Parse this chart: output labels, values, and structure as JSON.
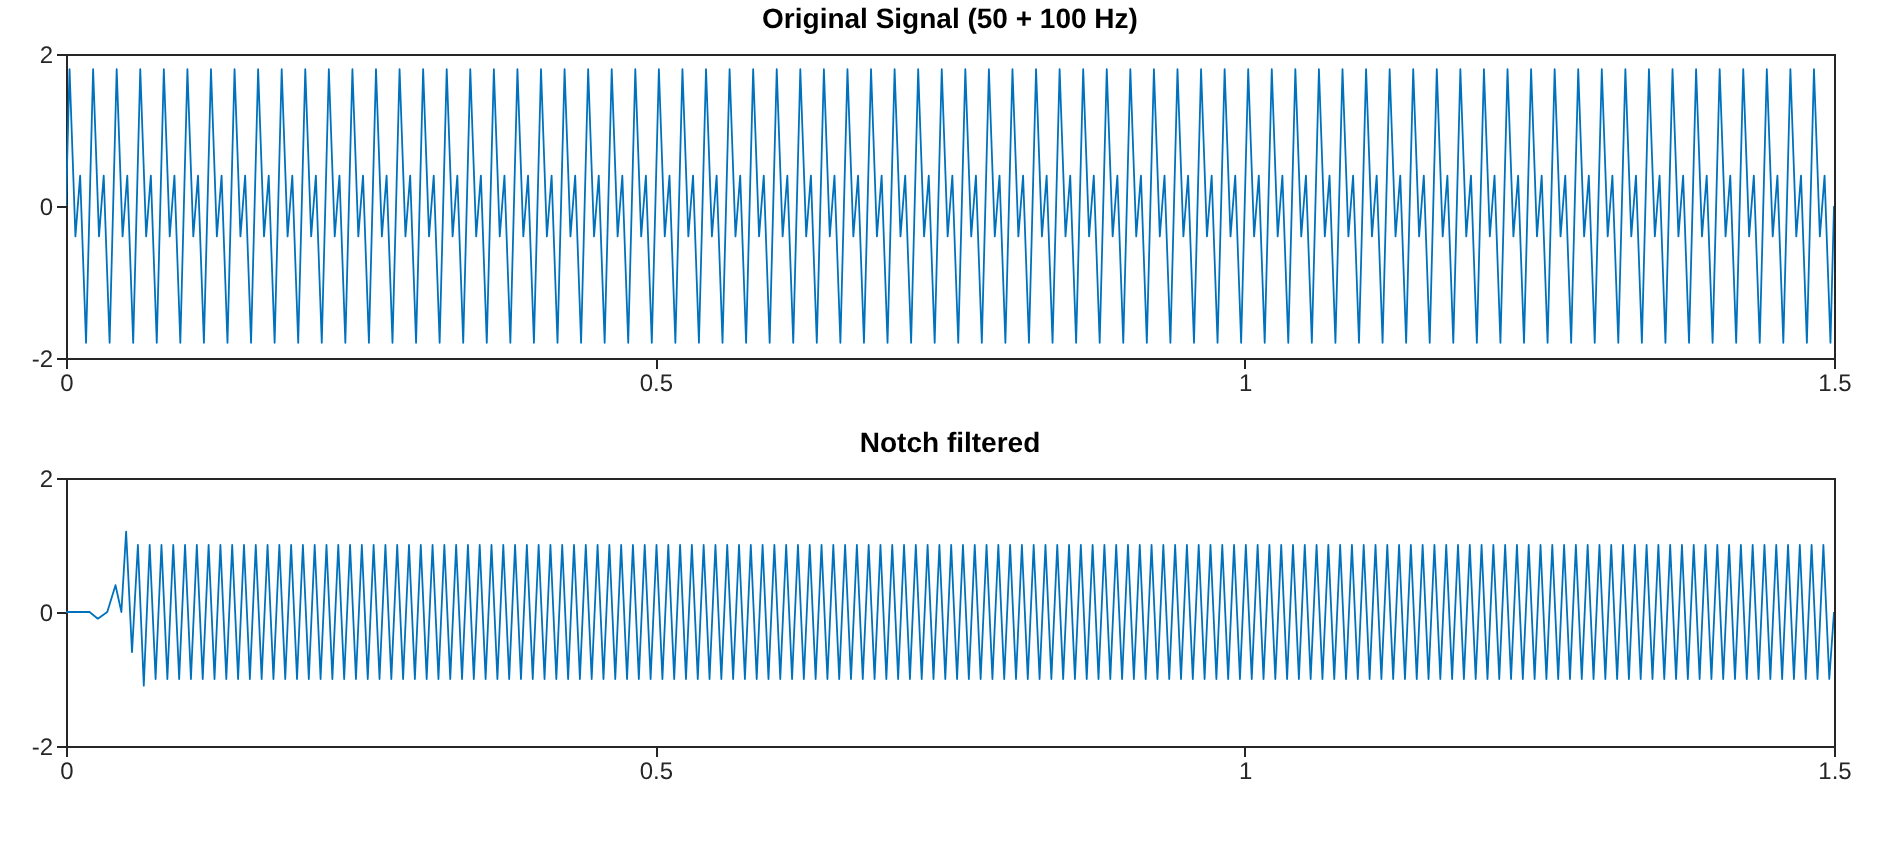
{
  "chart_data": [
    {
      "type": "line",
      "title": "Original Signal (50 + 100 Hz)",
      "xlim": [
        0,
        1.5
      ],
      "xticks": [
        0,
        0.5,
        1,
        1.5
      ],
      "ylim": [
        -2,
        2
      ],
      "yticks": [
        -2,
        0,
        2
      ],
      "grid": false,
      "series": [
        {
          "color": "#0072bd",
          "x": [
            0,
            0.003,
            0.008,
            0.012,
            0.017,
            0.023,
            0.028,
            0.032,
            0.037,
            0.043,
            0.048,
            0.052,
            0.057,
            0.063,
            0.068,
            0.072,
            0.077,
            0.083,
            0.088,
            0.092,
            0.097,
            0.103,
            0.108,
            0.112,
            0.117,
            0.123,
            0.128,
            0.132,
            0.137,
            0.143,
            0.148,
            0.152,
            0.157,
            0.163,
            0.168,
            0.172,
            0.177,
            0.183,
            0.188,
            0.192,
            0.197,
            0.203,
            0.208,
            0.212,
            0.217,
            0.223,
            0.228,
            0.232,
            0.237,
            0.243,
            0.248,
            0.252,
            0.257,
            0.263,
            0.268,
            0.272,
            0.277,
            0.283,
            0.288,
            0.292,
            0.297,
            0.303,
            0.308,
            0.312,
            0.317,
            0.323,
            0.328,
            0.332,
            0.337,
            0.343,
            0.348,
            0.352,
            0.357,
            0.363,
            0.368,
            0.372,
            0.377,
            0.383,
            0.388,
            0.392,
            0.397,
            0.403,
            0.408,
            0.412,
            0.417,
            0.423,
            0.428,
            0.432,
            0.437,
            0.443,
            0.448,
            0.452,
            0.457,
            0.463,
            0.468,
            0.472,
            0.477,
            0.483,
            0.488,
            0.492,
            0.497,
            0.503,
            0.508,
            0.512,
            0.517,
            0.523,
            0.528,
            0.532,
            0.537,
            0.543,
            0.548,
            0.552,
            0.557,
            0.563,
            0.568,
            0.572,
            0.577,
            0.583,
            0.588,
            0.592,
            0.597,
            0.603,
            0.608,
            0.612,
            0.617,
            0.623,
            0.628,
            0.632,
            0.637,
            0.643,
            0.648,
            0.652,
            0.657,
            0.663,
            0.668,
            0.672,
            0.677,
            0.683,
            0.688,
            0.692,
            0.697,
            0.703,
            0.708,
            0.712,
            0.717,
            0.723,
            0.728,
            0.732,
            0.737,
            0.743,
            0.748,
            0.752,
            0.757,
            0.763,
            0.768,
            0.772,
            0.777,
            0.783,
            0.788,
            0.792,
            0.797,
            0.803,
            0.808,
            0.812,
            0.817,
            0.823,
            0.828,
            0.832,
            0.837,
            0.843,
            0.848,
            0.852,
            0.857,
            0.863,
            0.868,
            0.872,
            0.877,
            0.883,
            0.888,
            0.892,
            0.897,
            0.903,
            0.908,
            0.912,
            0.917,
            0.923,
            0.928,
            0.932,
            0.937,
            0.943,
            0.948,
            0.952,
            0.957,
            0.963,
            0.968,
            0.972,
            0.977,
            0.983,
            0.988,
            0.992,
            0.997,
            1.003,
            1.008,
            1.012,
            1.017,
            1.023,
            1.028,
            1.032,
            1.037,
            1.043,
            1.048,
            1.052,
            1.057,
            1.063,
            1.068,
            1.072,
            1.077,
            1.083,
            1.088,
            1.092,
            1.097,
            1.103,
            1.108,
            1.112,
            1.117,
            1.123,
            1.128,
            1.132,
            1.137,
            1.143,
            1.148,
            1.152,
            1.157,
            1.163,
            1.168,
            1.172,
            1.177,
            1.183,
            1.188,
            1.192,
            1.197,
            1.203,
            1.208,
            1.212,
            1.217,
            1.223,
            1.228,
            1.232,
            1.237,
            1.243,
            1.248,
            1.252,
            1.257,
            1.263,
            1.268,
            1.272,
            1.277,
            1.283,
            1.288,
            1.292,
            1.297,
            1.303,
            1.308,
            1.312,
            1.317,
            1.323,
            1.328,
            1.332,
            1.337,
            1.343,
            1.348,
            1.352,
            1.357,
            1.363,
            1.368,
            1.372,
            1.377,
            1.383,
            1.388,
            1.392,
            1.397,
            1.403,
            1.408,
            1.412,
            1.417,
            1.423,
            1.428,
            1.432,
            1.437,
            1.443,
            1.448,
            1.452,
            1.457,
            1.463,
            1.468,
            1.472,
            1.477,
            1.483,
            1.488,
            1.492,
            1.497,
            1.5
          ],
          "values": [
            0,
            1.8,
            -0.4,
            0.4,
            -1.8,
            1.8,
            -0.4,
            0.4,
            -1.8,
            1.8,
            -0.4,
            0.4,
            -1.8,
            1.8,
            -0.4,
            0.4,
            -1.8,
            1.8,
            -0.4,
            0.4,
            -1.8,
            1.8,
            -0.4,
            0.4,
            -1.8,
            1.8,
            -0.4,
            0.4,
            -1.8,
            1.8,
            -0.4,
            0.4,
            -1.8,
            1.8,
            -0.4,
            0.4,
            -1.8,
            1.8,
            -0.4,
            0.4,
            -1.8,
            1.8,
            -0.4,
            0.4,
            -1.8,
            1.8,
            -0.4,
            0.4,
            -1.8,
            1.8,
            -0.4,
            0.4,
            -1.8,
            1.8,
            -0.4,
            0.4,
            -1.8,
            1.8,
            -0.4,
            0.4,
            -1.8,
            1.8,
            -0.4,
            0.4,
            -1.8,
            1.8,
            -0.4,
            0.4,
            -1.8,
            1.8,
            -0.4,
            0.4,
            -1.8,
            1.8,
            -0.4,
            0.4,
            -1.8,
            1.8,
            -0.4,
            0.4,
            -1.8,
            1.8,
            -0.4,
            0.4,
            -1.8,
            1.8,
            -0.4,
            0.4,
            -1.8,
            1.8,
            -0.4,
            0.4,
            -1.8,
            1.8,
            -0.4,
            0.4,
            -1.8,
            1.8,
            -0.4,
            0.4,
            -1.8,
            1.8,
            -0.4,
            0.4,
            -1.8,
            1.8,
            -0.4,
            0.4,
            -1.8,
            1.8,
            -0.4,
            0.4,
            -1.8,
            1.8,
            -0.4,
            0.4,
            -1.8,
            1.8,
            -0.4,
            0.4,
            -1.8,
            1.8,
            -0.4,
            0.4,
            -1.8,
            1.8,
            -0.4,
            0.4,
            -1.8,
            1.8,
            -0.4,
            0.4,
            -1.8,
            1.8,
            -0.4,
            0.4,
            -1.8,
            1.8,
            -0.4,
            0.4,
            -1.8,
            1.8,
            -0.4,
            0.4,
            -1.8,
            1.8,
            -0.4,
            0.4,
            -1.8,
            1.8,
            -0.4,
            0.4,
            -1.8,
            1.8,
            -0.4,
            0.4,
            -1.8,
            1.8,
            -0.4,
            0.4,
            -1.8,
            1.8,
            -0.4,
            0.4,
            -1.8,
            1.8,
            -0.4,
            0.4,
            -1.8,
            1.8,
            -0.4,
            0.4,
            -1.8,
            1.8,
            -0.4,
            0.4,
            -1.8,
            1.8,
            -0.4,
            0.4,
            -1.8,
            1.8,
            -0.4,
            0.4,
            -1.8,
            1.8,
            -0.4,
            0.4,
            -1.8,
            1.8,
            -0.4,
            0.4,
            -1.8,
            1.8,
            -0.4,
            0.4,
            -1.8,
            1.8,
            -0.4,
            0.4,
            -1.8,
            1.8,
            -0.4,
            0.4,
            -1.8,
            1.8,
            -0.4,
            0.4,
            -1.8,
            1.8,
            -0.4,
            0.4,
            -1.8,
            1.8,
            -0.4,
            0.4,
            -1.8,
            1.8,
            -0.4,
            0.4,
            -1.8,
            1.8,
            -0.4,
            0.4,
            -1.8,
            1.8,
            -0.4,
            0.4,
            -1.8,
            1.8,
            -0.4,
            0.4,
            -1.8,
            1.8,
            -0.4,
            0.4,
            -1.8,
            1.8,
            -0.4,
            0.4,
            -1.8,
            1.8,
            -0.4,
            0.4,
            -1.8,
            1.8,
            -0.4,
            0.4,
            -1.8,
            1.8,
            -0.4,
            0.4,
            -1.8,
            1.8,
            -0.4,
            0.4,
            -1.8,
            1.8,
            -0.4,
            0.4,
            -1.8,
            1.8,
            -0.4,
            0.4,
            -1.8,
            1.8,
            -0.4,
            0.4,
            -1.8,
            1.8,
            -0.4,
            0.4,
            -1.8,
            1.8,
            -0.4,
            0.4,
            -1.8,
            1.8,
            -0.4,
            0.4,
            -1.8,
            1.8,
            -0.4,
            0.4,
            -1.8,
            1.8,
            -0.4,
            0.4,
            -1.8,
            1.8,
            -0.4,
            0.4,
            -1.8,
            1.8,
            -0.4,
            0.4,
            -1.8,
            1.8,
            -0.4,
            0.4,
            -1.8,
            0
          ]
        }
      ]
    },
    {
      "type": "line",
      "title": "Notch filtered",
      "xlim": [
        0,
        1.5
      ],
      "xticks": [
        0,
        0.5,
        1,
        1.5
      ],
      "ylim": [
        -2,
        2
      ],
      "yticks": [
        -2,
        0,
        2
      ],
      "grid": false,
      "series": [
        {
          "color": "#0072bd",
          "x": [
            0,
            0.01,
            0.02,
            0.027,
            0.035,
            0.042,
            0.047,
            0.051,
            0.056,
            0.061,
            0.066,
            0.071,
            0.076,
            0.081,
            0.086,
            0.091,
            0.096,
            0.101,
            0.106,
            0.111,
            0.116,
            0.121,
            0.126,
            0.131,
            0.136,
            0.141,
            0.146,
            0.151,
            0.156,
            0.161,
            0.166,
            0.171,
            0.176,
            0.181,
            0.186,
            0.191,
            0.196,
            0.201,
            0.206,
            0.211,
            0.216,
            0.221,
            0.226,
            0.231,
            0.236,
            0.241,
            0.246,
            0.251,
            0.256,
            0.261,
            0.266,
            0.271,
            0.276,
            0.281,
            0.286,
            0.291,
            0.296,
            0.301,
            0.306,
            0.311,
            0.316,
            0.321,
            0.326,
            0.331,
            0.336,
            0.341,
            0.346,
            0.351,
            0.356,
            0.361,
            0.366,
            0.371,
            0.376,
            0.381,
            0.386,
            0.391,
            0.396,
            0.401,
            0.406,
            0.411,
            0.416,
            0.421,
            0.426,
            0.431,
            0.436,
            0.441,
            0.446,
            0.451,
            0.456,
            0.461,
            0.466,
            0.471,
            0.476,
            0.481,
            0.486,
            0.491,
            0.496,
            0.501,
            0.506,
            0.511,
            0.516,
            0.521,
            0.526,
            0.531,
            0.536,
            0.541,
            0.546,
            0.551,
            0.556,
            0.561,
            0.566,
            0.571,
            0.576,
            0.581,
            0.586,
            0.591,
            0.596,
            0.601,
            0.606,
            0.611,
            0.616,
            0.621,
            0.626,
            0.631,
            0.636,
            0.641,
            0.646,
            0.651,
            0.656,
            0.661,
            0.666,
            0.671,
            0.676,
            0.681,
            0.686,
            0.691,
            0.696,
            0.701,
            0.706,
            0.711,
            0.716,
            0.721,
            0.726,
            0.731,
            0.736,
            0.741,
            0.746,
            0.751,
            0.756,
            0.761,
            0.766,
            0.771,
            0.776,
            0.781,
            0.786,
            0.791,
            0.796,
            0.801,
            0.806,
            0.811,
            0.816,
            0.821,
            0.826,
            0.831,
            0.836,
            0.841,
            0.846,
            0.851,
            0.856,
            0.861,
            0.866,
            0.871,
            0.876,
            0.881,
            0.886,
            0.891,
            0.896,
            0.901,
            0.906,
            0.911,
            0.916,
            0.921,
            0.926,
            0.931,
            0.936,
            0.941,
            0.946,
            0.951,
            0.956,
            0.961,
            0.966,
            0.971,
            0.976,
            0.981,
            0.986,
            0.991,
            0.996,
            1.001,
            1.006,
            1.011,
            1.016,
            1.021,
            1.026,
            1.031,
            1.036,
            1.041,
            1.046,
            1.051,
            1.056,
            1.061,
            1.066,
            1.071,
            1.076,
            1.081,
            1.086,
            1.091,
            1.096,
            1.101,
            1.106,
            1.111,
            1.116,
            1.121,
            1.126,
            1.131,
            1.136,
            1.141,
            1.146,
            1.151,
            1.156,
            1.161,
            1.166,
            1.171,
            1.176,
            1.181,
            1.186,
            1.191,
            1.196,
            1.201,
            1.206,
            1.211,
            1.216,
            1.221,
            1.226,
            1.231,
            1.236,
            1.241,
            1.246,
            1.251,
            1.256,
            1.261,
            1.266,
            1.271,
            1.276,
            1.281,
            1.286,
            1.291,
            1.296,
            1.301,
            1.306,
            1.311,
            1.316,
            1.321,
            1.326,
            1.331,
            1.336,
            1.341,
            1.346,
            1.351,
            1.356,
            1.361,
            1.366,
            1.371,
            1.376,
            1.381,
            1.386,
            1.391,
            1.396,
            1.401,
            1.406,
            1.411,
            1.416,
            1.421,
            1.426,
            1.431,
            1.436,
            1.441,
            1.446,
            1.451,
            1.456,
            1.461,
            1.466,
            1.471,
            1.476,
            1.481,
            1.486,
            1.491,
            1.496,
            1.5
          ],
          "values": [
            0,
            0,
            0,
            -0.1,
            0,
            0.4,
            0,
            1.2,
            -0.6,
            1,
            -1.1,
            1,
            -1,
            1,
            -1,
            1,
            -1,
            1,
            -1,
            1,
            -1,
            1,
            -1,
            1,
            -1,
            1,
            -1,
            1,
            -1,
            1,
            -1,
            1,
            -1,
            1,
            -1,
            1,
            -1,
            1,
            -1,
            1,
            -1,
            1,
            -1,
            1,
            -1,
            1,
            -1,
            1,
            -1,
            1,
            -1,
            1,
            -1,
            1,
            -1,
            1,
            -1,
            1,
            -1,
            1,
            -1,
            1,
            -1,
            1,
            -1,
            1,
            -1,
            1,
            -1,
            1,
            -1,
            1,
            -1,
            1,
            -1,
            1,
            -1,
            1,
            -1,
            1,
            -1,
            1,
            -1,
            1,
            -1,
            1,
            -1,
            1,
            -1,
            1,
            -1,
            1,
            -1,
            1,
            -1,
            1,
            -1,
            1,
            -1,
            1,
            -1,
            1,
            -1,
            1,
            -1,
            1,
            -1,
            1,
            -1,
            1,
            -1,
            1,
            -1,
            1,
            -1,
            1,
            -1,
            1,
            -1,
            1,
            -1,
            1,
            -1,
            1,
            -1,
            1,
            -1,
            1,
            -1,
            1,
            -1,
            1,
            -1,
            1,
            -1,
            1,
            -1,
            1,
            -1,
            1,
            -1,
            1,
            -1,
            1,
            -1,
            1,
            -1,
            1,
            -1,
            1,
            -1,
            1,
            -1,
            1,
            -1,
            1,
            -1,
            1,
            -1,
            1,
            -1,
            1,
            -1,
            1,
            -1,
            1,
            -1,
            1,
            -1,
            1,
            -1,
            1,
            -1,
            1,
            -1,
            1,
            -1,
            1,
            -1,
            1,
            -1,
            1,
            -1,
            1,
            -1,
            1,
            -1,
            1,
            -1,
            1,
            -1,
            1,
            -1,
            1,
            -1,
            1,
            -1,
            1,
            -1,
            1,
            -1,
            1,
            -1,
            1,
            -1,
            1,
            -1,
            1,
            -1,
            1,
            -1,
            1,
            -1,
            1,
            -1,
            1,
            -1,
            1,
            -1,
            1,
            -1,
            1,
            -1,
            1,
            -1,
            1,
            -1,
            1,
            -1,
            1,
            -1,
            1,
            -1,
            1,
            -1,
            1,
            -1,
            1,
            -1,
            1,
            -1,
            1,
            -1,
            1,
            -1,
            1,
            -1,
            1,
            -1,
            1,
            -1,
            1,
            -1,
            1,
            -1,
            1,
            -1,
            1,
            -1,
            1,
            -1,
            1,
            -1,
            1,
            -1,
            1,
            -1,
            1,
            -1,
            1,
            -1,
            1,
            -1,
            1,
            -1,
            1,
            -1,
            1,
            -1,
            1,
            -1,
            1,
            -1,
            1,
            -1,
            1,
            -1,
            1,
            -1,
            1,
            -1,
            1,
            -1,
            1,
            -1,
            1,
            -1,
            0
          ]
        }
      ]
    }
  ]
}
